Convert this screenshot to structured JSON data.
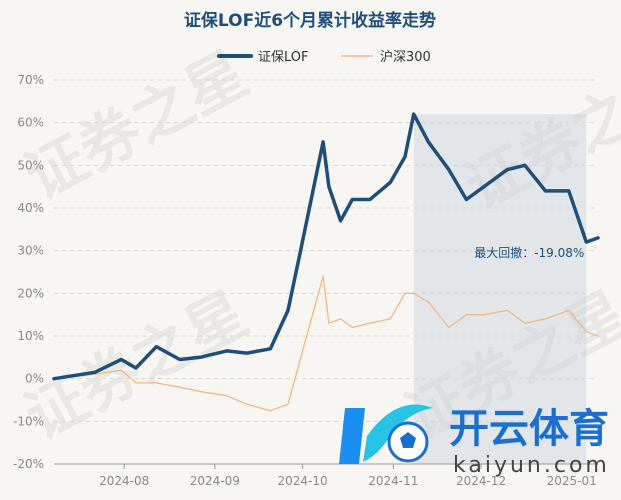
{
  "watermark_text": "证券之星",
  "logo": {
    "name": "开云体育",
    "domain": "kaiyun.com"
  },
  "chart_data": {
    "type": "line",
    "title": "证保LOF近6个月累计收益率走势",
    "legend_position": "top-center",
    "grid": true,
    "x_ticks": [
      "2024-08",
      "2024-09",
      "2024-10",
      "2024-11",
      "2024-12",
      "2025-01"
    ],
    "y_ticks": [
      "70%",
      "60%",
      "50%",
      "40%",
      "30%",
      "20%",
      "10%",
      "0%",
      "-10%",
      "-20%"
    ],
    "ylim": [
      -20,
      70
    ],
    "xlim": [
      "2024-07-08",
      "2025-01-10"
    ],
    "x": [
      "2024-07-08",
      "2024-07-22",
      "2024-07-31",
      "2024-08-05",
      "2024-08-12",
      "2024-08-20",
      "2024-08-27",
      "2024-09-05",
      "2024-09-12",
      "2024-09-20",
      "2024-09-26",
      "2024-09-30",
      "2024-10-08",
      "2024-10-10",
      "2024-10-14",
      "2024-10-18",
      "2024-10-24",
      "2024-10-31",
      "2024-11-05",
      "2024-11-08",
      "2024-11-13",
      "2024-11-20",
      "2024-11-26",
      "2024-12-02",
      "2024-12-10",
      "2024-12-16",
      "2024-12-23",
      "2024-12-31",
      "2025-01-06",
      "2025-01-10"
    ],
    "series": [
      {
        "name": "证保LOF",
        "color": "#1f4e79",
        "values": [
          0,
          1.5,
          4.5,
          2.5,
          7.5,
          4.5,
          5,
          6.5,
          6,
          7,
          16,
          29,
          55.5,
          45,
          37,
          42,
          42,
          46,
          52,
          62,
          55.5,
          49,
          42,
          45,
          49,
          50,
          44,
          44,
          32,
          33
        ]
      },
      {
        "name": "沪深300",
        "color": "#f0b887",
        "values": [
          0,
          1,
          2,
          -1,
          -1,
          -2,
          -3,
          -4,
          -6,
          -7.5,
          -6,
          4,
          24,
          13,
          14,
          12,
          13,
          14,
          20,
          20,
          18,
          12,
          15,
          15,
          16,
          13,
          14,
          16,
          11,
          10
        ]
      }
    ],
    "annotation": {
      "text": "最大回撤：-19.08%",
      "shaded_from": "2024-11-08",
      "shaded_to": "2025-01-06"
    }
  }
}
